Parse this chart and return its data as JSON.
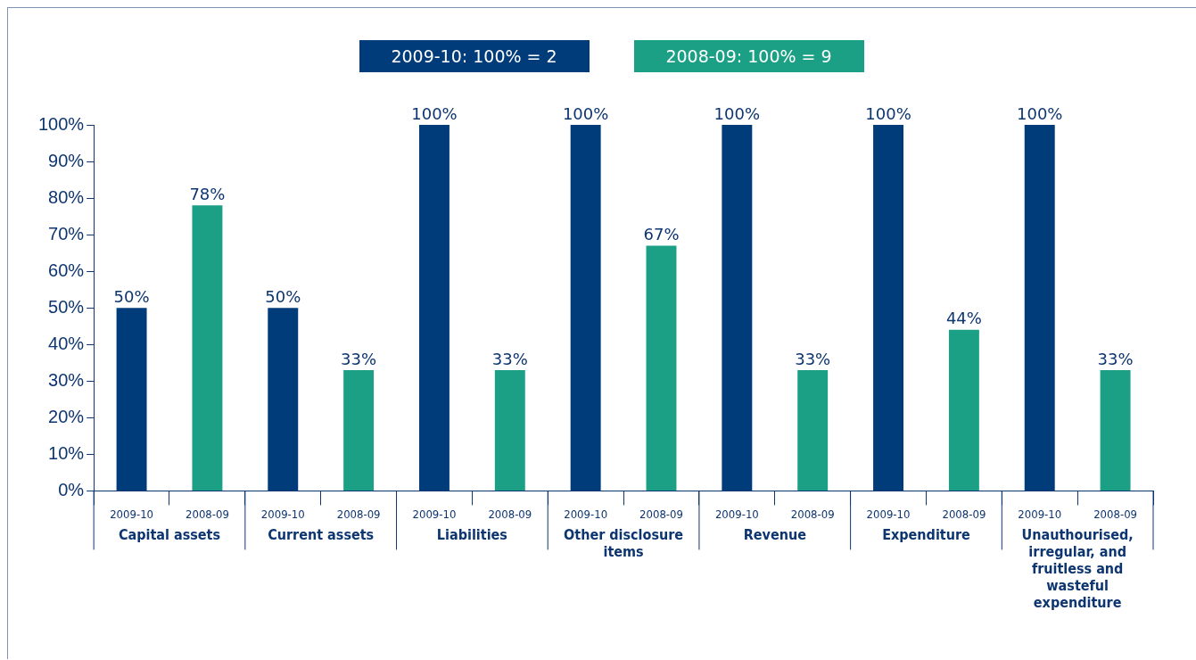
{
  "chart_data": {
    "type": "bar",
    "categories": [
      "2009-10",
      "2008-09",
      "2009-10",
      "2008-09",
      "2009-10",
      "2008-09",
      "2009-10",
      "2008-09",
      "2009-10",
      "2008-09",
      "2009-10",
      "2008-09",
      "2009-10",
      "2008-09"
    ],
    "series": [
      {
        "name": "2009-10: 100% = 2",
        "color": "#003b7a",
        "values": [
          50,
          null,
          50,
          null,
          100,
          null,
          100,
          null,
          100,
          null,
          100,
          null,
          100,
          null
        ],
        "value_labels": [
          "50%",
          null,
          "50%",
          null,
          "100%",
          null,
          "100%",
          null,
          "100%",
          null,
          "100%",
          null,
          "100%",
          null
        ]
      },
      {
        "name": "2008-09: 100% = 9",
        "color": "#1ba085",
        "values": [
          null,
          78,
          null,
          33,
          null,
          33,
          null,
          67,
          null,
          33,
          null,
          44,
          null,
          33
        ],
        "value_labels": [
          null,
          "78%",
          null,
          "33%",
          null,
          "33%",
          null,
          "67%",
          null,
          "33%",
          null,
          "44%",
          null,
          "33%"
        ]
      }
    ],
    "ylim": [
      0,
      100
    ],
    "yticks": [
      {
        "value": 0,
        "label": "0%"
      },
      {
        "value": 10,
        "label": "10%"
      },
      {
        "value": 20,
        "label": "20%"
      },
      {
        "value": 30,
        "label": "30%"
      },
      {
        "value": 40,
        "label": "40%"
      },
      {
        "value": 50,
        "label": "50%"
      },
      {
        "value": 60,
        "label": "60%"
      },
      {
        "value": 70,
        "label": "70%"
      },
      {
        "value": 80,
        "label": "80%"
      },
      {
        "value": 90,
        "label": "90%"
      },
      {
        "value": 100,
        "label": "100%"
      }
    ],
    "annotations": [
      "Capital assets",
      "Current assets",
      "Liabilities",
      "Other disclosure items",
      "Revenue",
      "Expenditure",
      "Unauthourised, irregular, and fruitless and wasteful expenditure"
    ],
    "grid": false,
    "legend": "top"
  }
}
